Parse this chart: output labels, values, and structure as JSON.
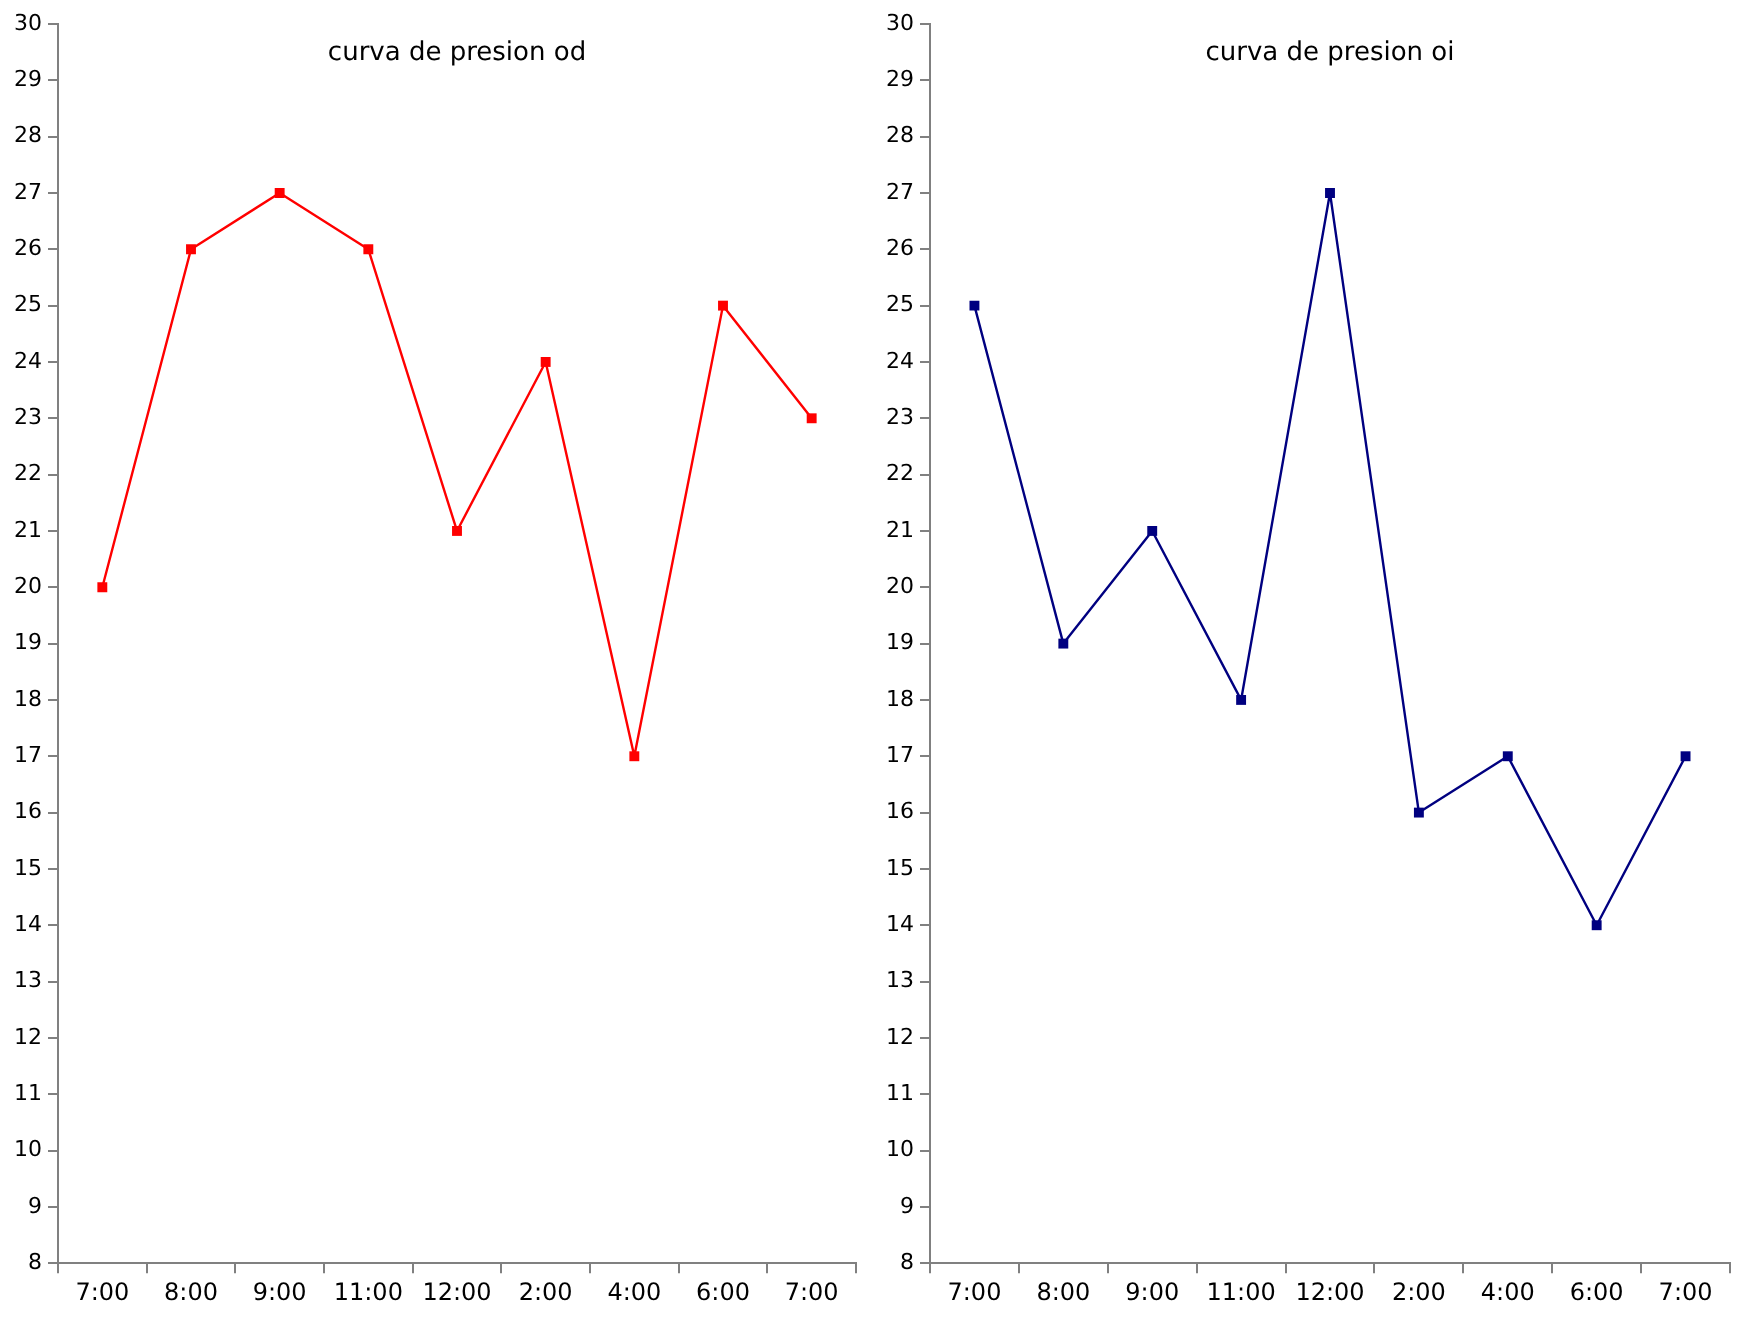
{
  "chart_data": [
    {
      "type": "line",
      "title": "curva de presion od",
      "categories": [
        "7:00",
        "8:00",
        "9:00",
        "11:00",
        "12:00",
        "2:00",
        "4:00",
        "6:00",
        "7:00"
      ],
      "series": [
        {
          "color": "#ff0000",
          "values": [
            20,
            26,
            27,
            26,
            21,
            24,
            17,
            25,
            23
          ]
        }
      ],
      "ylim": [
        8,
        30
      ],
      "yticks": [
        8,
        9,
        10,
        11,
        12,
        13,
        14,
        15,
        16,
        17,
        18,
        19,
        20,
        21,
        22,
        23,
        24,
        25,
        26,
        27,
        28,
        29,
        30
      ],
      "marker": "square",
      "grid": false,
      "legend": false
    },
    {
      "type": "line",
      "title": "curva de presion oi",
      "categories": [
        "7:00",
        "8:00",
        "9:00",
        "11:00",
        "12:00",
        "2:00",
        "4:00",
        "6:00",
        "7:00"
      ],
      "series": [
        {
          "color": "#000080",
          "values": [
            25,
            19,
            21,
            18,
            27,
            16,
            17,
            14,
            17
          ]
        }
      ],
      "ylim": [
        8,
        30
      ],
      "yticks": [
        8,
        9,
        10,
        11,
        12,
        13,
        14,
        15,
        16,
        17,
        18,
        19,
        20,
        21,
        22,
        23,
        24,
        25,
        26,
        27,
        28,
        29,
        30
      ],
      "marker": "square",
      "grid": false,
      "legend": false
    }
  ]
}
